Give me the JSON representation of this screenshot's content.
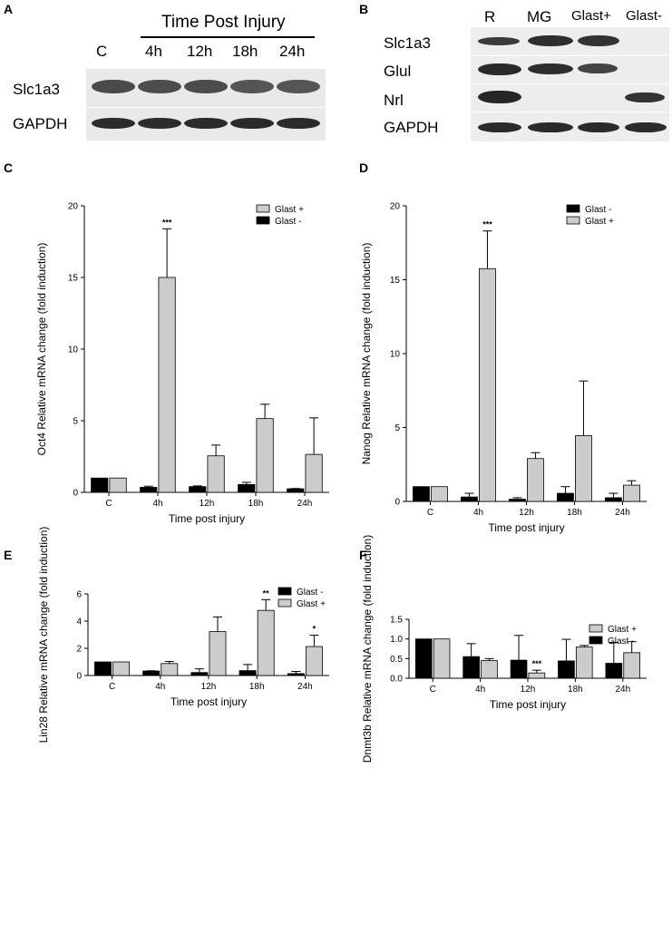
{
  "panels": {
    "a": "A",
    "b": "B",
    "c": "C",
    "d": "D",
    "e": "E",
    "f": "F"
  },
  "blot_a": {
    "header": "Time Post Injury",
    "lanes": [
      "C",
      "4h",
      "12h",
      "18h",
      "24h"
    ],
    "rows": [
      "Slc1a3",
      "GAPDH"
    ]
  },
  "blot_b": {
    "lanes": [
      "R",
      "MG",
      "Glast+",
      "Glast-"
    ],
    "rows": [
      "Slc1a3",
      "Glul",
      "Nrl",
      "GAPDH"
    ]
  },
  "colors": {
    "glast_minus": "#000000",
    "glast_plus": "#cccccc",
    "error": "#000000"
  },
  "chart_data": [
    {
      "id": "C",
      "type": "bar",
      "categories": [
        "C",
        "4h",
        "12h",
        "18h",
        "24h"
      ],
      "series": [
        {
          "name": "Glast -",
          "values": [
            1.0,
            0.35,
            0.4,
            0.55,
            0.25
          ],
          "errors": [
            0,
            0.08,
            0.05,
            0.15,
            0.02
          ]
        },
        {
          "name": "Glast +",
          "values": [
            1.0,
            15.0,
            2.55,
            5.15,
            2.65
          ],
          "errors": [
            0,
            3.4,
            0.75,
            1.0,
            2.55
          ]
        }
      ],
      "legend_order": [
        "Glast +",
        "Glast -"
      ],
      "legend_position": "top-right",
      "significance": [
        {
          "category": "4h",
          "series": "Glast +",
          "label": "***"
        }
      ],
      "ylabel": "Oct4 Relative mRNA change (fold induction)",
      "xlabel": "Time post injury",
      "ylim": [
        0,
        20
      ],
      "yticks": [
        0,
        5,
        10,
        15,
        20
      ]
    },
    {
      "id": "D",
      "type": "bar",
      "categories": [
        "C",
        "4h",
        "12h",
        "18h",
        "24h"
      ],
      "series": [
        {
          "name": "Glast -",
          "values": [
            1.0,
            0.3,
            0.15,
            0.55,
            0.25
          ],
          "errors": [
            0,
            0.25,
            0.1,
            0.45,
            0.3
          ]
        },
        {
          "name": "Glast +",
          "values": [
            1.0,
            15.75,
            2.9,
            4.45,
            1.1
          ],
          "errors": [
            0,
            2.55,
            0.4,
            3.7,
            0.3
          ]
        }
      ],
      "legend_order": [
        "Glast -",
        "Glast +"
      ],
      "legend_position": "top-right",
      "significance": [
        {
          "category": "4h",
          "series": "Glast +",
          "label": "***"
        }
      ],
      "ylabel": "Nanog Relative mRNA change (fold induction)",
      "xlabel": "Time post injury",
      "ylim": [
        0,
        20
      ],
      "yticks": [
        0,
        5,
        10,
        15,
        20
      ]
    },
    {
      "id": "E",
      "type": "bar",
      "categories": [
        "C",
        "4h",
        "12h",
        "18h",
        "24h"
      ],
      "series": [
        {
          "name": "Glast -",
          "values": [
            1.0,
            0.33,
            0.22,
            0.36,
            0.14
          ],
          "errors": [
            0,
            0.02,
            0.27,
            0.45,
            0.16
          ]
        },
        {
          "name": "Glast +",
          "values": [
            1.0,
            0.88,
            3.23,
            4.79,
            2.13
          ],
          "errors": [
            0,
            0.15,
            1.08,
            0.79,
            0.83
          ]
        }
      ],
      "legend_order": [
        "Glast -",
        "Glast +"
      ],
      "legend_position": "top-right",
      "significance": [
        {
          "category": "18h",
          "series": "Glast +",
          "label": "**"
        },
        {
          "category": "24h",
          "series": "Glast +",
          "label": "*"
        }
      ],
      "ylabel": "Lin28 Relative mRNA change (fold induction)",
      "xlabel": "Time post injury",
      "ylim": [
        0,
        6
      ],
      "yticks": [
        0,
        2,
        4,
        6
      ]
    },
    {
      "id": "F",
      "type": "bar",
      "categories": [
        "C",
        "4h",
        "12h",
        "18h",
        "24h"
      ],
      "series": [
        {
          "name": "Glast -",
          "values": [
            1.0,
            0.55,
            0.46,
            0.44,
            0.38
          ],
          "errors": [
            0,
            0.33,
            0.63,
            0.55,
            0.53
          ]
        },
        {
          "name": "Glast +",
          "values": [
            1.0,
            0.45,
            0.135,
            0.795,
            0.65
          ],
          "errors": [
            0,
            0.05,
            0.07,
            0.04,
            0.28
          ]
        }
      ],
      "legend_order": [
        "Glast +",
        "Glast -"
      ],
      "legend_position": "top-right",
      "significance": [
        {
          "category": "12h",
          "series": "Glast +",
          "label": "***"
        }
      ],
      "ylabel": "Dnmt3b Relative mRNA change (fold induction)",
      "xlabel": "Time post injury",
      "ylim": [
        0,
        1.5
      ],
      "yticks": [
        0.0,
        0.5,
        1.0,
        1.5
      ],
      "ytick_format": 1
    }
  ]
}
